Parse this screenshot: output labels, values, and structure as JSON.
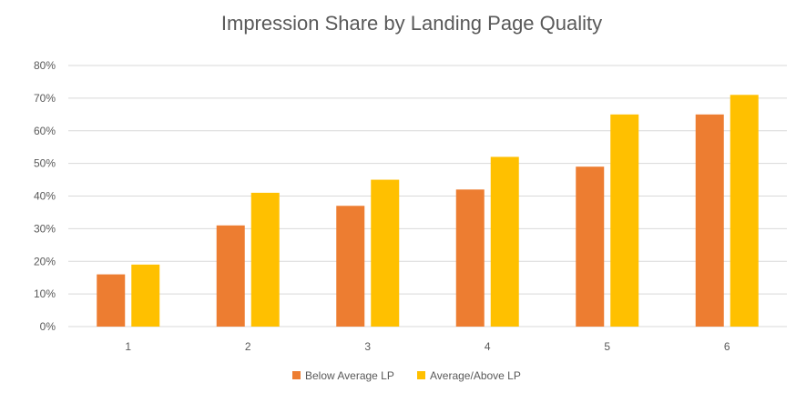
{
  "chart_data": {
    "type": "bar",
    "title": "Impression Share by Landing Page Quality",
    "xlabel": "",
    "ylabel": "",
    "categories": [
      "1",
      "2",
      "3",
      "4",
      "5",
      "6"
    ],
    "series": [
      {
        "name": "Below Average LP",
        "color": "#ED7D31",
        "values": [
          16,
          31,
          37,
          42,
          49,
          65
        ]
      },
      {
        "name": "Average/Above LP",
        "color": "#FFC000",
        "values": [
          19,
          41,
          45,
          52,
          65,
          71
        ]
      }
    ],
    "ylim": [
      0,
      80
    ],
    "yticks": [
      0,
      10,
      20,
      30,
      40,
      50,
      60,
      70,
      80
    ],
    "ytick_labels": [
      "0%",
      "10%",
      "20%",
      "30%",
      "40%",
      "50%",
      "60%",
      "70%",
      "80%"
    ],
    "grid": true,
    "legend_position": "bottom"
  }
}
